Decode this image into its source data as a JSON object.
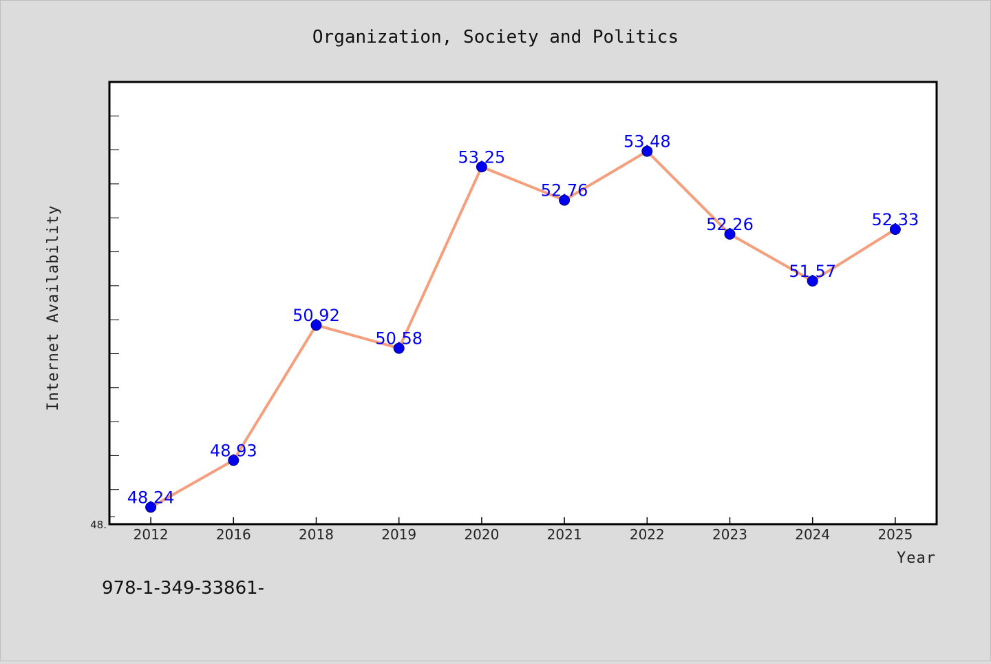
{
  "footer_text": "978-1-349-33861-",
  "chart_data": {
    "type": "line",
    "title": "Organization, Society and Politics",
    "xlabel": "Year",
    "ylabel": "Internet Availability",
    "categories": [
      "2012",
      "2016",
      "2018",
      "2019",
      "2020",
      "2021",
      "2022",
      "2023",
      "2024",
      "2025"
    ],
    "values": [
      48.24,
      48.93,
      50.92,
      50.58,
      53.25,
      52.76,
      53.48,
      52.26,
      51.57,
      52.33
    ],
    "data_labels": [
      "48.24",
      "48.93",
      "50.92",
      "50.58",
      "53.25",
      "52.76",
      "53.48",
      "52.26",
      "51.57",
      "52.33"
    ],
    "ytick_labels": [
      "48."
    ],
    "ylim": [
      47.99,
      54.5
    ],
    "ytick_step": 0.5,
    "line_color": "#f4a07e",
    "marker_color": "#0000ee",
    "label_color": "#0000ee",
    "grid": false,
    "legend": "none"
  }
}
